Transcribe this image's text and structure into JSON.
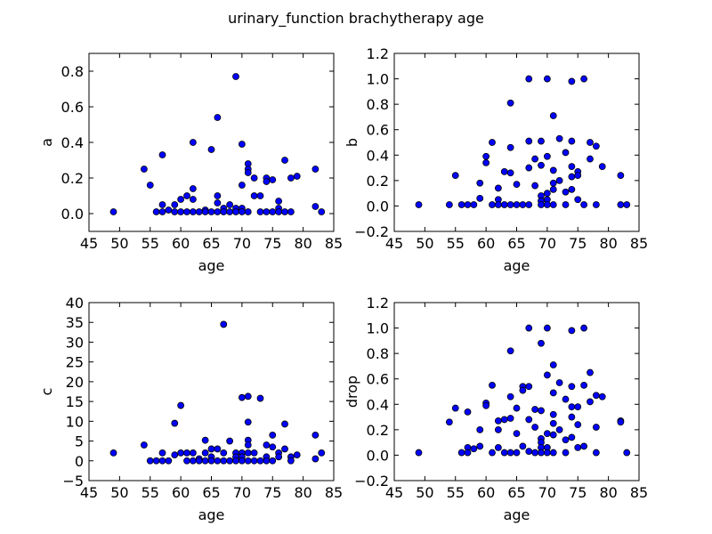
{
  "figure": {
    "title": "urinary_function brachytherapy age"
  },
  "colors": {
    "marker_fill": "#0000ff",
    "marker_edge": "#000000",
    "axes_edge": "#000000",
    "background": "#ffffff"
  },
  "chart_data": [
    {
      "type": "scatter",
      "xlabel": "age",
      "ylabel": "a",
      "xlim": [
        45,
        85
      ],
      "ylim": [
        -0.1,
        0.9
      ],
      "xticks": [
        45,
        50,
        55,
        60,
        65,
        70,
        75,
        80,
        85
      ],
      "yticks": [
        0.0,
        0.2,
        0.4,
        0.6,
        0.8
      ],
      "ytick_labels": [
        "0.0",
        "0.2",
        "0.4",
        "0.6",
        "0.8"
      ],
      "points": [
        [
          49,
          0.01
        ],
        [
          54,
          0.25
        ],
        [
          55,
          0.16
        ],
        [
          56,
          0.01
        ],
        [
          57,
          0.33
        ],
        [
          57,
          0.05
        ],
        [
          57,
          0.01
        ],
        [
          58,
          0.02
        ],
        [
          59,
          0.05
        ],
        [
          59,
          0.01
        ],
        [
          60,
          0.08
        ],
        [
          60,
          0.01
        ],
        [
          61,
          0.1
        ],
        [
          61,
          0.01
        ],
        [
          62,
          0.4
        ],
        [
          62,
          0.14
        ],
        [
          62,
          0.08
        ],
        [
          62,
          0.01
        ],
        [
          63,
          0.01
        ],
        [
          64,
          0.02
        ],
        [
          64,
          0.01
        ],
        [
          65,
          0.36
        ],
        [
          65,
          0.01
        ],
        [
          66,
          0.54
        ],
        [
          66,
          0.1
        ],
        [
          66,
          0.06
        ],
        [
          66,
          0.01
        ],
        [
          67,
          0.03
        ],
        [
          67,
          0.01
        ],
        [
          68,
          0.05
        ],
        [
          68,
          0.01
        ],
        [
          69,
          0.77
        ],
        [
          69,
          0.03
        ],
        [
          69,
          0.01
        ],
        [
          70,
          0.39
        ],
        [
          70,
          0.16
        ],
        [
          70,
          0.03
        ],
        [
          70,
          0.01
        ],
        [
          71,
          0.28
        ],
        [
          71,
          0.25
        ],
        [
          71,
          0.23
        ],
        [
          71,
          0.01
        ],
        [
          72,
          0.2
        ],
        [
          72,
          0.1
        ],
        [
          73,
          0.1
        ],
        [
          73,
          0.01
        ],
        [
          74,
          0.2
        ],
        [
          74,
          0.18
        ],
        [
          74,
          0.01
        ],
        [
          75,
          0.19
        ],
        [
          75,
          0.01
        ],
        [
          76,
          0.07
        ],
        [
          76,
          0.03
        ],
        [
          76,
          0.01
        ],
        [
          77,
          0.3
        ],
        [
          77,
          0.01
        ],
        [
          78,
          0.2
        ],
        [
          78,
          0.01
        ],
        [
          79,
          0.21
        ],
        [
          82,
          0.25
        ],
        [
          82,
          0.04
        ],
        [
          83,
          0.01
        ]
      ]
    },
    {
      "type": "scatter",
      "xlabel": "age",
      "ylabel": "b",
      "xlim": [
        45,
        85
      ],
      "ylim": [
        -0.2,
        1.2
      ],
      "xticks": [
        45,
        50,
        55,
        60,
        65,
        70,
        75,
        80,
        85
      ],
      "yticks": [
        -0.2,
        0.0,
        0.2,
        0.4,
        0.6,
        0.8,
        1.0,
        1.2
      ],
      "ytick_labels": [
        "−0.2",
        "0.0",
        "0.2",
        "0.4",
        "0.6",
        "0.8",
        "1.0",
        "1.2"
      ],
      "points": [
        [
          49,
          0.01
        ],
        [
          54,
          0.01
        ],
        [
          55,
          0.24
        ],
        [
          56,
          0.01
        ],
        [
          57,
          0.01
        ],
        [
          58,
          0.01
        ],
        [
          59,
          0.18
        ],
        [
          59,
          0.06
        ],
        [
          60,
          0.39
        ],
        [
          60,
          0.34
        ],
        [
          61,
          0.5
        ],
        [
          61,
          0.01
        ],
        [
          62,
          0.14
        ],
        [
          62,
          0.05
        ],
        [
          62,
          0.01
        ],
        [
          63,
          0.27
        ],
        [
          63,
          0.01
        ],
        [
          64,
          0.81
        ],
        [
          64,
          0.46
        ],
        [
          64,
          0.26
        ],
        [
          64,
          0.01
        ],
        [
          65,
          0.17
        ],
        [
          65,
          0.01
        ],
        [
          66,
          0.01
        ],
        [
          67,
          1.0
        ],
        [
          67,
          0.51
        ],
        [
          67,
          0.3
        ],
        [
          67,
          0.01
        ],
        [
          68,
          0.37
        ],
        [
          68,
          0.16
        ],
        [
          69,
          0.51
        ],
        [
          69,
          0.32
        ],
        [
          69,
          0.08
        ],
        [
          69,
          0.04
        ],
        [
          69,
          0.01
        ],
        [
          70,
          1.0
        ],
        [
          70,
          0.39
        ],
        [
          70,
          0.1
        ],
        [
          70,
          0.05
        ],
        [
          70,
          0.01
        ],
        [
          71,
          0.71
        ],
        [
          71,
          0.28
        ],
        [
          71,
          0.18
        ],
        [
          71,
          0.13
        ],
        [
          71,
          0.01
        ],
        [
          72,
          0.53
        ],
        [
          72,
          0.2
        ],
        [
          73,
          0.42
        ],
        [
          73,
          0.11
        ],
        [
          73,
          0.01
        ],
        [
          74,
          0.98
        ],
        [
          74,
          0.51
        ],
        [
          74,
          0.31
        ],
        [
          74,
          0.23
        ],
        [
          74,
          0.13
        ],
        [
          75,
          0.27
        ],
        [
          75,
          0.24
        ],
        [
          75,
          0.05
        ],
        [
          76,
          1.0
        ],
        [
          76,
          0.01
        ],
        [
          77,
          0.5
        ],
        [
          77,
          0.37
        ],
        [
          78,
          0.47
        ],
        [
          78,
          0.01
        ],
        [
          79,
          0.31
        ],
        [
          82,
          0.24
        ],
        [
          82,
          0.01
        ],
        [
          83,
          0.01
        ]
      ]
    },
    {
      "type": "scatter",
      "xlabel": "age",
      "ylabel": "c",
      "xlim": [
        45,
        85
      ],
      "ylim": [
        -5,
        40
      ],
      "xticks": [
        45,
        50,
        55,
        60,
        65,
        70,
        75,
        80,
        85
      ],
      "yticks": [
        -5,
        0,
        5,
        10,
        15,
        20,
        25,
        30,
        35,
        40
      ],
      "ytick_labels": [
        "−5",
        "0",
        "5",
        "10",
        "15",
        "20",
        "25",
        "30",
        "35",
        "40"
      ],
      "points": [
        [
          49,
          2
        ],
        [
          54,
          4
        ],
        [
          55,
          0
        ],
        [
          56,
          0
        ],
        [
          57,
          2
        ],
        [
          57,
          0
        ],
        [
          58,
          0
        ],
        [
          59,
          9.5
        ],
        [
          59,
          1.5
        ],
        [
          60,
          14
        ],
        [
          60,
          2
        ],
        [
          61,
          2
        ],
        [
          61,
          0
        ],
        [
          62,
          2
        ],
        [
          62,
          0
        ],
        [
          63,
          0.5
        ],
        [
          63,
          0
        ],
        [
          64,
          5.2
        ],
        [
          64,
          2
        ],
        [
          64,
          0
        ],
        [
          65,
          3
        ],
        [
          65,
          1
        ],
        [
          65,
          0
        ],
        [
          66,
          3
        ],
        [
          66,
          0
        ],
        [
          67,
          34.5
        ],
        [
          67,
          2
        ],
        [
          67,
          0
        ],
        [
          68,
          5
        ],
        [
          68,
          0
        ],
        [
          69,
          2
        ],
        [
          69,
          1
        ],
        [
          69,
          0
        ],
        [
          70,
          16
        ],
        [
          70,
          2
        ],
        [
          70,
          1
        ],
        [
          70,
          0
        ],
        [
          71,
          16.3
        ],
        [
          71,
          9.8
        ],
        [
          71,
          5.2
        ],
        [
          71,
          4
        ],
        [
          71,
          2
        ],
        [
          71,
          0
        ],
        [
          72,
          2
        ],
        [
          72,
          0
        ],
        [
          73,
          15.8
        ],
        [
          73,
          0
        ],
        [
          74,
          4
        ],
        [
          74,
          1
        ],
        [
          74,
          0
        ],
        [
          75,
          6.5
        ],
        [
          75,
          3.5
        ],
        [
          75,
          0
        ],
        [
          76,
          2
        ],
        [
          76,
          1
        ],
        [
          77,
          9.3
        ],
        [
          77,
          3
        ],
        [
          78,
          1
        ],
        [
          78,
          0
        ],
        [
          79,
          1.5
        ],
        [
          82,
          6.5
        ],
        [
          82,
          0.5
        ],
        [
          83,
          2
        ]
      ]
    },
    {
      "type": "scatter",
      "xlabel": "age",
      "ylabel": "drop",
      "xlim": [
        45,
        85
      ],
      "ylim": [
        -0.2,
        1.2
      ],
      "xticks": [
        45,
        50,
        55,
        60,
        65,
        70,
        75,
        80,
        85
      ],
      "yticks": [
        -0.2,
        0.0,
        0.2,
        0.4,
        0.6,
        0.8,
        1.0,
        1.2
      ],
      "ytick_labels": [
        "−0.2",
        "0.0",
        "0.2",
        "0.4",
        "0.6",
        "0.8",
        "1.0",
        "1.2"
      ],
      "points": [
        [
          49,
          0.02
        ],
        [
          54,
          0.26
        ],
        [
          55,
          0.37
        ],
        [
          56,
          0.02
        ],
        [
          57,
          0.34
        ],
        [
          57,
          0.06
        ],
        [
          57,
          0.02
        ],
        [
          58,
          0.05
        ],
        [
          59,
          0.2
        ],
        [
          59,
          0.07
        ],
        [
          60,
          0.41
        ],
        [
          60,
          0.39
        ],
        [
          61,
          0.55
        ],
        [
          61,
          0.02
        ],
        [
          62,
          0.27
        ],
        [
          62,
          0.2
        ],
        [
          62,
          0.06
        ],
        [
          63,
          0.28
        ],
        [
          63,
          0.02
        ],
        [
          64,
          0.82
        ],
        [
          64,
          0.46
        ],
        [
          64,
          0.29
        ],
        [
          64,
          0.02
        ],
        [
          65,
          0.37
        ],
        [
          65,
          0.17
        ],
        [
          65,
          0.02
        ],
        [
          66,
          0.54
        ],
        [
          66,
          0.51
        ],
        [
          66,
          0.07
        ],
        [
          67,
          1.0
        ],
        [
          67,
          0.54
        ],
        [
          67,
          0.28
        ],
        [
          67,
          0.03
        ],
        [
          68,
          0.36
        ],
        [
          68,
          0.22
        ],
        [
          68,
          0.02
        ],
        [
          69,
          0.88
        ],
        [
          69,
          0.35
        ],
        [
          69,
          0.13
        ],
        [
          69,
          0.1
        ],
        [
          69,
          0.06
        ],
        [
          69,
          0.02
        ],
        [
          70,
          1.0
        ],
        [
          70,
          0.63
        ],
        [
          70,
          0.17
        ],
        [
          70,
          0.06
        ],
        [
          70,
          0.02
        ],
        [
          71,
          0.71
        ],
        [
          71,
          0.49
        ],
        [
          71,
          0.32
        ],
        [
          71,
          0.25
        ],
        [
          71,
          0.16
        ],
        [
          71,
          0.02
        ],
        [
          72,
          0.57
        ],
        [
          72,
          0.2
        ],
        [
          73,
          0.44
        ],
        [
          73,
          0.12
        ],
        [
          73,
          0.02
        ],
        [
          74,
          0.98
        ],
        [
          74,
          0.54
        ],
        [
          74,
          0.38
        ],
        [
          74,
          0.3
        ],
        [
          74,
          0.14
        ],
        [
          75,
          0.38
        ],
        [
          75,
          0.24
        ],
        [
          75,
          0.06
        ],
        [
          76,
          1.0
        ],
        [
          76,
          0.55
        ],
        [
          76,
          0.07
        ],
        [
          77,
          0.65
        ],
        [
          77,
          0.42
        ],
        [
          78,
          0.47
        ],
        [
          78,
          0.22
        ],
        [
          78,
          0.02
        ],
        [
          79,
          0.46
        ],
        [
          82,
          0.27
        ],
        [
          82,
          0.26
        ],
        [
          83,
          0.02
        ]
      ]
    }
  ]
}
